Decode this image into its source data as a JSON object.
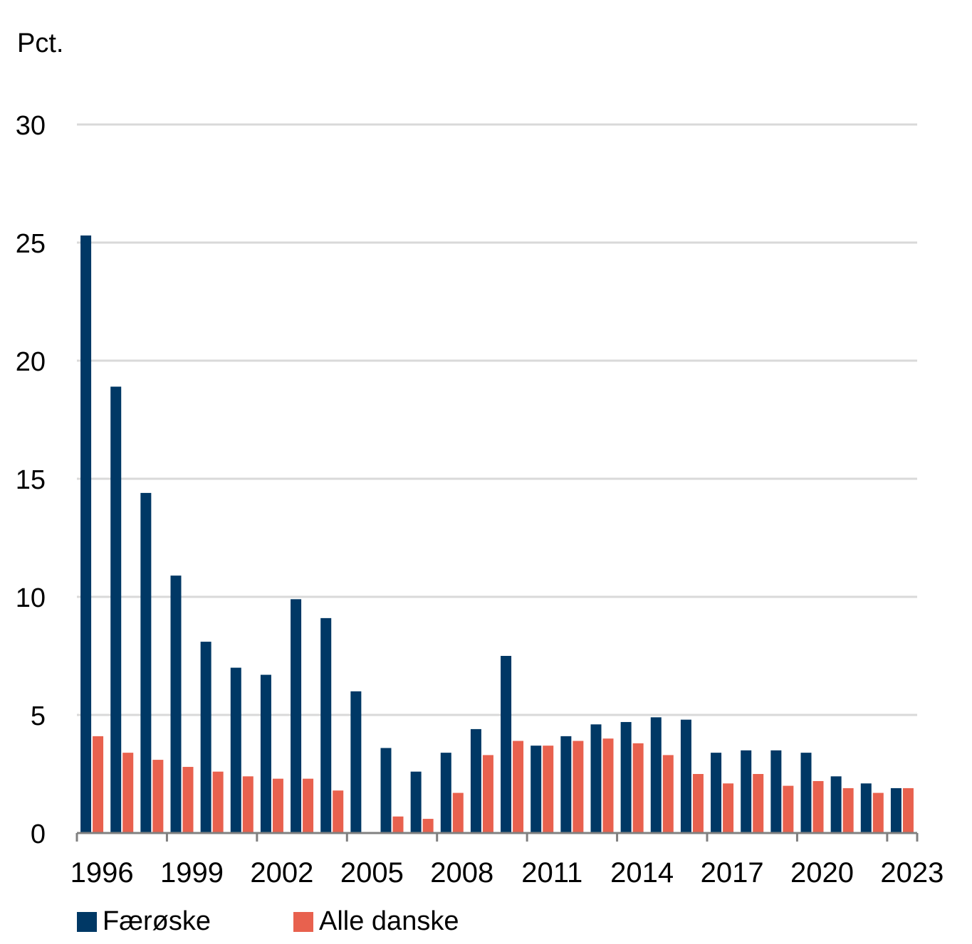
{
  "chart_data": {
    "type": "bar",
    "title": "",
    "ylabel": "Pct.",
    "xlabel": "",
    "ylim": [
      0,
      30
    ],
    "yticks": [
      "0",
      "5",
      "10",
      "15",
      "20",
      "25",
      "30"
    ],
    "grid": true,
    "legend_position": "bottom",
    "categories": [
      "1996",
      "1997",
      "1998",
      "1999",
      "2000",
      "2001",
      "2002",
      "2003",
      "2004",
      "2005",
      "2006",
      "2007",
      "2008",
      "2009",
      "2010",
      "2011",
      "2012",
      "2013",
      "2014",
      "2015",
      "2016",
      "2017",
      "2018",
      "2019",
      "2020",
      "2021",
      "2022",
      "2023"
    ],
    "xtick_labels": [
      "1996",
      "1999",
      "2002",
      "2005",
      "2008",
      "2011",
      "2014",
      "2017",
      "2020",
      "2023"
    ],
    "series": [
      {
        "name": "Færøske",
        "color": "#003865",
        "values": [
          25.3,
          18.9,
          14.4,
          10.9,
          8.1,
          7.0,
          6.7,
          9.9,
          9.1,
          6.0,
          3.6,
          2.6,
          3.4,
          4.4,
          7.5,
          3.7,
          4.1,
          4.6,
          4.7,
          4.9,
          4.8,
          3.4,
          3.5,
          3.5,
          3.4,
          2.4,
          2.1,
          1.9
        ]
      },
      {
        "name": "Alle danske",
        "color": "#E8614E",
        "values": [
          4.1,
          3.4,
          3.1,
          2.8,
          2.6,
          2.4,
          2.3,
          2.3,
          1.8,
          0.0,
          0.7,
          0.6,
          1.7,
          3.3,
          3.9,
          3.7,
          3.9,
          4.0,
          3.8,
          3.3,
          2.5,
          2.1,
          2.5,
          2.0,
          2.2,
          1.9,
          1.7,
          1.9
        ]
      }
    ]
  }
}
